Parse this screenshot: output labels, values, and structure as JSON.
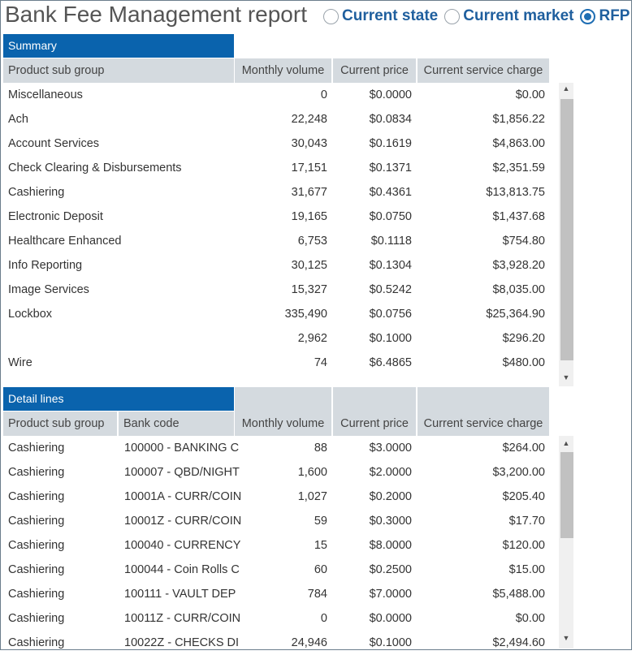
{
  "title": "Bank Fee Management report",
  "radio": {
    "options": [
      "Current state",
      "Current market",
      "RFP"
    ],
    "selected": "RFP"
  },
  "summary": {
    "section_title": "Summary",
    "columns": [
      "Product sub group",
      "Monthly volume",
      "Current price",
      "Current service charge"
    ],
    "rows": [
      [
        "Miscellaneous",
        "0",
        "$0.0000",
        "$0.00"
      ],
      [
        "Ach",
        "22,248",
        "$0.0834",
        "$1,856.22"
      ],
      [
        "Account Services",
        "30,043",
        "$0.1619",
        "$4,863.00"
      ],
      [
        "Check Clearing & Disbursements",
        "17,151",
        "$0.1371",
        "$2,351.59"
      ],
      [
        "Cashiering",
        "31,677",
        "$0.4361",
        "$13,813.75"
      ],
      [
        "Electronic Deposit",
        "19,165",
        "$0.0750",
        "$1,437.68"
      ],
      [
        "Healthcare Enhanced",
        "6,753",
        "$0.1118",
        "$754.80"
      ],
      [
        "Info Reporting",
        "30,125",
        "$0.1304",
        "$3,928.20"
      ],
      [
        "Image Services",
        "15,327",
        "$0.5242",
        "$8,035.00"
      ],
      [
        "Lockbox",
        "335,490",
        "$0.0756",
        "$25,364.90"
      ],
      [
        "",
        "2,962",
        "$0.1000",
        "$296.20"
      ],
      [
        "Wire",
        "74",
        "$6.4865",
        "$480.00"
      ]
    ]
  },
  "detail": {
    "section_title": "Detail lines",
    "columns": [
      "Product sub group",
      "Bank code",
      "Monthly volume",
      "Current price",
      "Current service charge"
    ],
    "rows": [
      [
        "Cashiering",
        "100000 - BANKING C",
        "88",
        "$3.0000",
        "$264.00"
      ],
      [
        "Cashiering",
        "100007 - QBD/NIGHT",
        "1,600",
        "$2.0000",
        "$3,200.00"
      ],
      [
        "Cashiering",
        "10001A - CURR/COIN",
        "1,027",
        "$0.2000",
        "$205.40"
      ],
      [
        "Cashiering",
        "10001Z - CURR/COIN",
        "59",
        "$0.3000",
        "$17.70"
      ],
      [
        "Cashiering",
        "100040 - CURRENCY",
        "15",
        "$8.0000",
        "$120.00"
      ],
      [
        "Cashiering",
        "100044 - Coin Rolls C",
        "60",
        "$0.2500",
        "$15.00"
      ],
      [
        "Cashiering",
        "100111 - VAULT DEP",
        "784",
        "$7.0000",
        "$5,488.00"
      ],
      [
        "Cashiering",
        "10011Z - CURR/COIN",
        "0",
        "$0.0000",
        "$0.00"
      ],
      [
        "Cashiering",
        "10022Z - CHECKS DI",
        "24,946",
        "$0.1000",
        "$2,494.60"
      ]
    ]
  },
  "colors": {
    "section_bg": "#0a63ad",
    "header_bg": "#d4dadf",
    "radio_label": "#1f5f9e"
  }
}
